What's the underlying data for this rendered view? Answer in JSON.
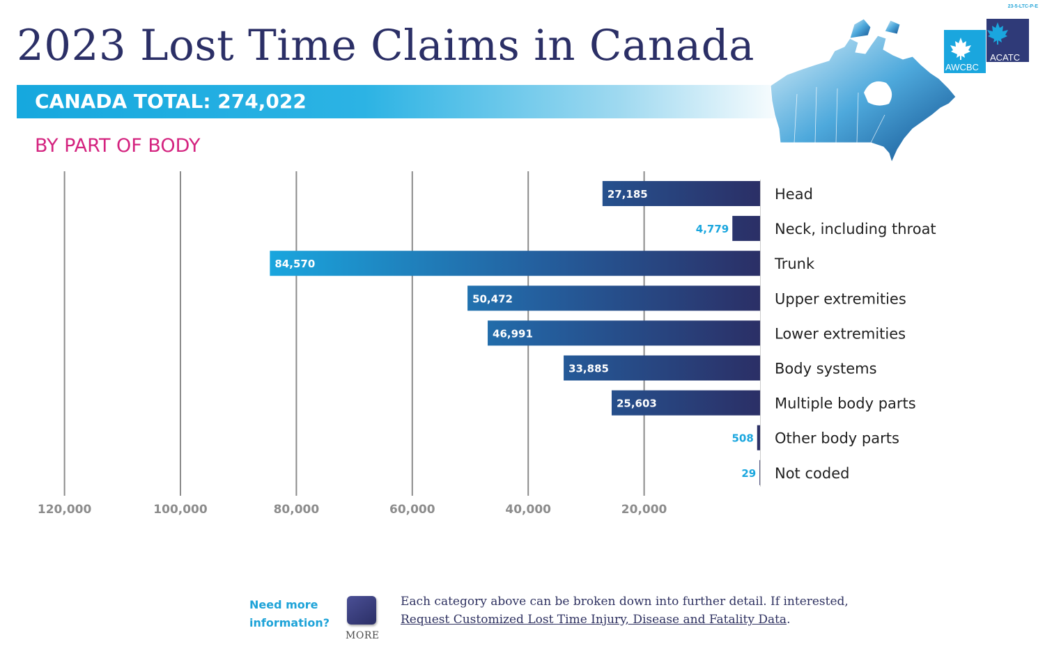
{
  "doc_code": "23-5-LTC-P-E",
  "title": "2023 Lost Time Claims in Canada",
  "total_banner": "CANADA TOTAL: 274,022",
  "subtitle": "BY PART OF BODY",
  "logo": {
    "left_text": "AWCBC",
    "right_text": "ACATC"
  },
  "colors": {
    "navy": "#2b2f66",
    "accent_blue": "#1aa6de",
    "magenta": "#d4237f",
    "gridline": "#8a8a8a"
  },
  "chart_data": {
    "type": "bar",
    "orientation": "horizontal",
    "direction": "right-to-left",
    "title": "BY PART OF BODY",
    "xlabel": "",
    "ylabel": "",
    "xlim": [
      0,
      120000
    ],
    "ticks": [
      120000,
      100000,
      80000,
      60000,
      40000,
      20000
    ],
    "tick_labels": [
      "120,000",
      "100,000",
      "80,000",
      "60,000",
      "40,000",
      "20,000"
    ],
    "categories": [
      "Head",
      "Neck, including throat",
      "Trunk",
      "Upper extremities",
      "Lower extremities",
      "Body systems",
      "Multiple body parts",
      "Other body parts",
      "Not coded"
    ],
    "values": [
      27185,
      4779,
      84570,
      50472,
      46991,
      33885,
      25603,
      508,
      29
    ],
    "value_labels": [
      "27,185",
      "4,779",
      "84,570",
      "50,472",
      "46,991",
      "33,885",
      "25,603",
      "508",
      "29"
    ],
    "grid": true,
    "legend": "none"
  },
  "footer": {
    "question": "Need more information?",
    "button_label": "MORE",
    "text": "Each category above can be broken down into further detail. If interested,",
    "link_text": "Request Customized Lost Time Injury, Disease and Fatality Data",
    "link_suffix": "."
  }
}
